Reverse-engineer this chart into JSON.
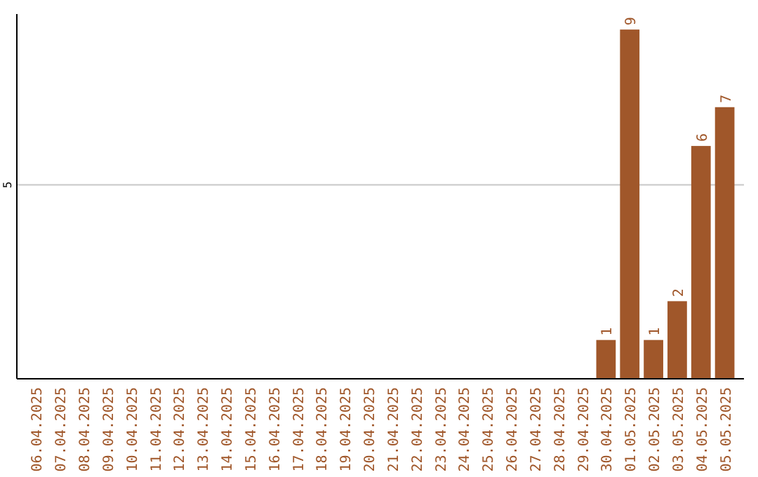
{
  "chart_data": {
    "type": "bar",
    "ylim": [
      0,
      9.4
    ],
    "categories": [
      "06.04.2025",
      "07.04.2025",
      "08.04.2025",
      "09.04.2025",
      "10.04.2025",
      "11.04.2025",
      "12.04.2025",
      "13.04.2025",
      "14.04.2025",
      "15.04.2025",
      "16.04.2025",
      "17.04.2025",
      "18.04.2025",
      "19.04.2025",
      "20.04.2025",
      "21.04.2025",
      "22.04.2025",
      "23.04.2025",
      "24.04.2025",
      "25.04.2025",
      "26.04.2025",
      "27.04.2025",
      "28.04.2025",
      "29.04.2025",
      "30.04.2025",
      "01.05.2025",
      "02.05.2025",
      "03.05.2025",
      "04.05.2025",
      "05.05.2025"
    ],
    "values": [
      null,
      null,
      null,
      null,
      null,
      null,
      null,
      null,
      null,
      null,
      null,
      null,
      null,
      null,
      null,
      null,
      null,
      null,
      null,
      null,
      null,
      null,
      null,
      null,
      1,
      9,
      1,
      2,
      6,
      7
    ],
    "value_labels": [
      null,
      null,
      null,
      null,
      null,
      null,
      null,
      null,
      null,
      null,
      null,
      null,
      null,
      null,
      null,
      null,
      null,
      null,
      null,
      null,
      null,
      null,
      null,
      null,
      "1",
      "9",
      "1",
      "2",
      "6",
      "7"
    ],
    "color": "#a0572a",
    "yticks": [
      5
    ],
    "grid": "y"
  }
}
